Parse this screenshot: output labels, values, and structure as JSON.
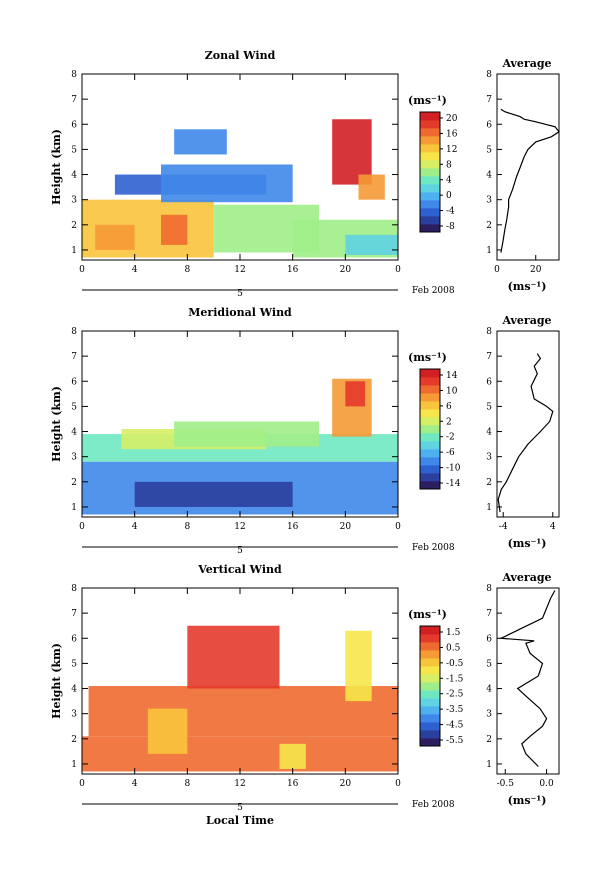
{
  "colors": {
    "palette": [
      "#2d1e5f",
      "#2b3f9f",
      "#2f60cf",
      "#3f88ea",
      "#4fb0f0",
      "#5fd3e2",
      "#6fe8c2",
      "#a0ee8a",
      "#d6ef66",
      "#f6e64a",
      "#f8c43c",
      "#f59a35",
      "#ef6a2f",
      "#e43a2c",
      "#d11f24"
    ],
    "contour": "#000000"
  },
  "panels": [
    {
      "title": "Zonal Wind",
      "ylabel": "Height (km)",
      "units_label": "(ms⁻¹)",
      "date_label": "Feb 2008",
      "day_label": "5",
      "xlabel": "",
      "x_ticks": [
        "0",
        "4",
        "8",
        "12",
        "16",
        "20",
        "0"
      ],
      "y_ticks": [
        "1",
        "2",
        "3",
        "4",
        "5",
        "6",
        "7",
        "8"
      ],
      "colorbar_ticks": [
        "20",
        "16",
        "12",
        "8",
        "4",
        "0",
        "-4",
        "-8"
      ],
      "avg_title": "Average",
      "avg_x_ticks": [
        "0",
        "20"
      ],
      "avg_y_ticks": [
        "1",
        "2",
        "3",
        "4",
        "5",
        "6",
        "7",
        "8"
      ],
      "avg_xlabel": "(ms⁻¹)"
    },
    {
      "title": "Meridional Wind",
      "ylabel": "Height (km)",
      "units_label": "(ms⁻¹)",
      "date_label": "Feb 2008",
      "day_label": "5",
      "xlabel": "",
      "x_ticks": [
        "0",
        "4",
        "8",
        "12",
        "16",
        "20",
        "0"
      ],
      "y_ticks": [
        "1",
        "2",
        "3",
        "4",
        "5",
        "6",
        "7",
        "8"
      ],
      "colorbar_ticks": [
        "14",
        "10",
        "6",
        "2",
        "-2",
        "-6",
        "-10",
        "-14"
      ],
      "avg_title": "Average",
      "avg_x_ticks": [
        "-4",
        "4"
      ],
      "avg_y_ticks": [
        "1",
        "2",
        "3",
        "4",
        "5",
        "6",
        "7",
        "8"
      ],
      "avg_xlabel": "(ms⁻¹)"
    },
    {
      "title": "Vertical Wind",
      "ylabel": "Height (km)",
      "units_label": "(ms⁻¹)",
      "date_label": "Feb 2008",
      "day_label": "5",
      "xlabel": "Local Time",
      "x_ticks": [
        "0",
        "4",
        "8",
        "12",
        "16",
        "20",
        "0"
      ],
      "y_ticks": [
        "1",
        "2",
        "3",
        "4",
        "5",
        "6",
        "7",
        "8"
      ],
      "colorbar_ticks": [
        "1.5",
        "0.5",
        "-0.5",
        "-1.5",
        "-2.5",
        "-3.5",
        "-4.5",
        "-5.5"
      ],
      "avg_title": "Average",
      "avg_x_ticks": [
        "-0.5",
        "0.0"
      ],
      "avg_y_ticks": [
        "1",
        "2",
        "3",
        "4",
        "5",
        "6",
        "7",
        "8"
      ],
      "avg_xlabel": "(ms⁻¹)"
    }
  ],
  "chart_data": [
    {
      "type": "heatmap",
      "title": "Zonal Wind",
      "xlabel": "",
      "ylabel": "Height (km)",
      "xlim": [
        0,
        24
      ],
      "ylim": [
        0.6,
        8
      ],
      "color_range": [
        -10,
        22
      ],
      "x_ticks": [
        0,
        4,
        8,
        12,
        16,
        20,
        24
      ],
      "regions": [
        {
          "x": [
            0,
            10
          ],
          "y": [
            0.7,
            3.0
          ],
          "value": 12
        },
        {
          "x": [
            1,
            4
          ],
          "y": [
            1.0,
            2.0
          ],
          "value": 14
        },
        {
          "x": [
            6,
            8
          ],
          "y": [
            1.2,
            2.4
          ],
          "value": 16
        },
        {
          "x": [
            10,
            18
          ],
          "y": [
            0.9,
            2.8
          ],
          "value": 6
        },
        {
          "x": [
            16,
            24
          ],
          "y": [
            0.7,
            2.2
          ],
          "value": 5
        },
        {
          "x": [
            20,
            24
          ],
          "y": [
            0.8,
            1.6
          ],
          "value": 2
        },
        {
          "x": [
            2.5,
            14
          ],
          "y": [
            3.2,
            4.0
          ],
          "value": -4
        },
        {
          "x": [
            6,
            16
          ],
          "y": [
            2.9,
            4.4
          ],
          "value": -3
        },
        {
          "x": [
            7,
            11
          ],
          "y": [
            4.8,
            5.8
          ],
          "value": -2
        },
        {
          "x": [
            19,
            22
          ],
          "y": [
            3.6,
            6.2
          ],
          "value": 22
        },
        {
          "x": [
            21,
            23
          ],
          "y": [
            3.0,
            4.0
          ],
          "value": 14
        }
      ],
      "average_profile": {
        "xlim": [
          0,
          32
        ],
        "ylim": [
          0.6,
          8
        ],
        "x": [
          2,
          3,
          4,
          5,
          6,
          6,
          8,
          10,
          12,
          14,
          16,
          20,
          28,
          32,
          30,
          20,
          14,
          12,
          8,
          4,
          2
        ],
        "y": [
          0.9,
          1.3,
          1.8,
          2.2,
          2.7,
          3.0,
          3.4,
          3.9,
          4.3,
          4.7,
          5.0,
          5.3,
          5.5,
          5.7,
          5.9,
          6.1,
          6.2,
          6.3,
          6.4,
          6.5,
          6.6
        ]
      }
    },
    {
      "type": "heatmap",
      "title": "Meridional Wind",
      "xlabel": "",
      "ylabel": "Height (km)",
      "xlim": [
        0,
        24
      ],
      "ylim": [
        0.6,
        8
      ],
      "color_range": [
        -16,
        16
      ],
      "x_ticks": [
        0,
        4,
        8,
        12,
        16,
        20,
        24
      ],
      "regions": [
        {
          "x": [
            0,
            24
          ],
          "y": [
            0.7,
            2.8
          ],
          "value": -8
        },
        {
          "x": [
            4,
            16
          ],
          "y": [
            1.0,
            2.0
          ],
          "value": -12
        },
        {
          "x": [
            0,
            24
          ],
          "y": [
            2.8,
            3.9
          ],
          "value": -3
        },
        {
          "x": [
            3,
            14
          ],
          "y": [
            3.3,
            4.1
          ],
          "value": 2
        },
        {
          "x": [
            7,
            18
          ],
          "y": [
            3.4,
            4.4
          ],
          "value": 1
        },
        {
          "x": [
            19,
            22
          ],
          "y": [
            3.8,
            6.1
          ],
          "value": 8
        },
        {
          "x": [
            20,
            21.5
          ],
          "y": [
            5.0,
            6.0
          ],
          "value": 12
        }
      ],
      "average_profile": {
        "xlim": [
          -5,
          5
        ],
        "ylim": [
          0.6,
          8
        ],
        "x": [
          -4.5,
          -4.8,
          -4.3,
          -3.5,
          -2.5,
          -1.5,
          0,
          2,
          3.5,
          4,
          3,
          1,
          0.5,
          1.5,
          1,
          2,
          1.5
        ],
        "y": [
          0.8,
          1.3,
          1.7,
          2.0,
          2.5,
          3.0,
          3.5,
          4.0,
          4.4,
          4.8,
          5.0,
          5.3,
          5.8,
          6.3,
          6.6,
          6.9,
          7.1
        ]
      }
    },
    {
      "type": "heatmap",
      "title": "Vertical Wind",
      "xlabel": "Local Time",
      "ylabel": "Height (km)",
      "xlim": [
        0,
        24
      ],
      "ylim": [
        0.6,
        8
      ],
      "color_range": [
        -6,
        2
      ],
      "x_ticks": [
        0,
        4,
        8,
        12,
        16,
        20,
        24
      ],
      "regions": [
        {
          "x": [
            0,
            24
          ],
          "y": [
            0.7,
            2.1
          ],
          "value": 0.4
        },
        {
          "x": [
            0.5,
            24
          ],
          "y": [
            2.1,
            4.1
          ],
          "value": 0.8
        },
        {
          "x": [
            5,
            8
          ],
          "y": [
            1.4,
            3.2
          ],
          "value": -0.5
        },
        {
          "x": [
            15,
            17
          ],
          "y": [
            0.8,
            1.8
          ],
          "value": -1.2
        },
        {
          "x": [
            8,
            15
          ],
          "y": [
            4.0,
            6.5
          ],
          "value": 1.0
        },
        {
          "x": [
            20,
            22
          ],
          "y": [
            3.5,
            6.3
          ],
          "value": -0.8
        }
      ],
      "average_profile": {
        "xlim": [
          -0.6,
          0.15
        ],
        "ylim": [
          0.6,
          8
        ],
        "x": [
          -0.1,
          -0.25,
          -0.3,
          -0.2,
          -0.05,
          0,
          -0.08,
          -0.25,
          -0.35,
          -0.1,
          -0.05,
          -0.2,
          -0.25,
          -0.15,
          -0.55,
          -0.3,
          -0.05,
          0,
          0.05,
          0.1
        ],
        "y": [
          0.9,
          1.4,
          1.8,
          2.1,
          2.5,
          2.8,
          3.2,
          3.7,
          4.0,
          4.5,
          5.0,
          5.4,
          5.8,
          5.9,
          6.0,
          6.4,
          6.8,
          7.2,
          7.6,
          7.9
        ]
      }
    }
  ]
}
